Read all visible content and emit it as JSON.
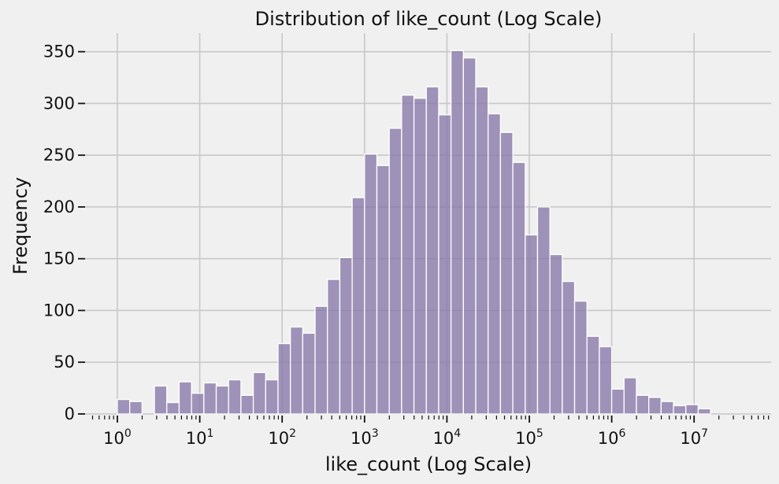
{
  "chart_data": {
    "type": "bar",
    "title": "Distribution of like_count (Log Scale)",
    "xlabel": "like_count (Log Scale)",
    "ylabel": "Frequency",
    "x_scale": "log",
    "x_tick_labels": [
      {
        "value": 1,
        "base": "10",
        "exp": "0"
      },
      {
        "value": 10,
        "base": "10",
        "exp": "1"
      },
      {
        "value": 100,
        "base": "10",
        "exp": "2"
      },
      {
        "value": 1000,
        "base": "10",
        "exp": "3"
      },
      {
        "value": 10000,
        "base": "10",
        "exp": "4"
      },
      {
        "value": 100000,
        "base": "10",
        "exp": "5"
      },
      {
        "value": 1000000,
        "base": "10",
        "exp": "6"
      },
      {
        "value": 10000000,
        "base": "10",
        "exp": "7"
      }
    ],
    "y_ticks": [
      0,
      50,
      100,
      150,
      200,
      250,
      300,
      350
    ],
    "ylim": [
      0,
      368
    ],
    "grid": true,
    "bin_edges_log10": [
      0,
      0.15,
      0.3,
      0.45,
      0.6,
      0.75,
      0.9,
      1.05,
      1.2,
      1.35,
      1.5,
      1.65,
      1.8,
      1.95,
      2.1,
      2.25,
      2.4,
      2.55,
      2.7,
      2.85,
      3.0,
      3.15,
      3.3,
      3.45,
      3.6,
      3.75,
      3.9,
      4.05,
      4.2,
      4.35,
      4.5,
      4.65,
      4.8,
      4.95,
      5.1,
      5.25,
      5.4,
      5.55,
      5.7,
      5.85,
      6.0,
      6.15,
      6.3,
      6.45,
      6.6,
      6.75,
      6.9,
      7.05,
      7.2
    ],
    "values": [
      14,
      12,
      0,
      27,
      11,
      31,
      20,
      30,
      27,
      33,
      18,
      40,
      33,
      68,
      84,
      78,
      104,
      130,
      151,
      209,
      251,
      240,
      276,
      308,
      305,
      316,
      289,
      351,
      344,
      316,
      290,
      272,
      243,
      173,
      200,
      154,
      128,
      109,
      75,
      65,
      24,
      35,
      18,
      16,
      12,
      8,
      9,
      5
    ]
  }
}
